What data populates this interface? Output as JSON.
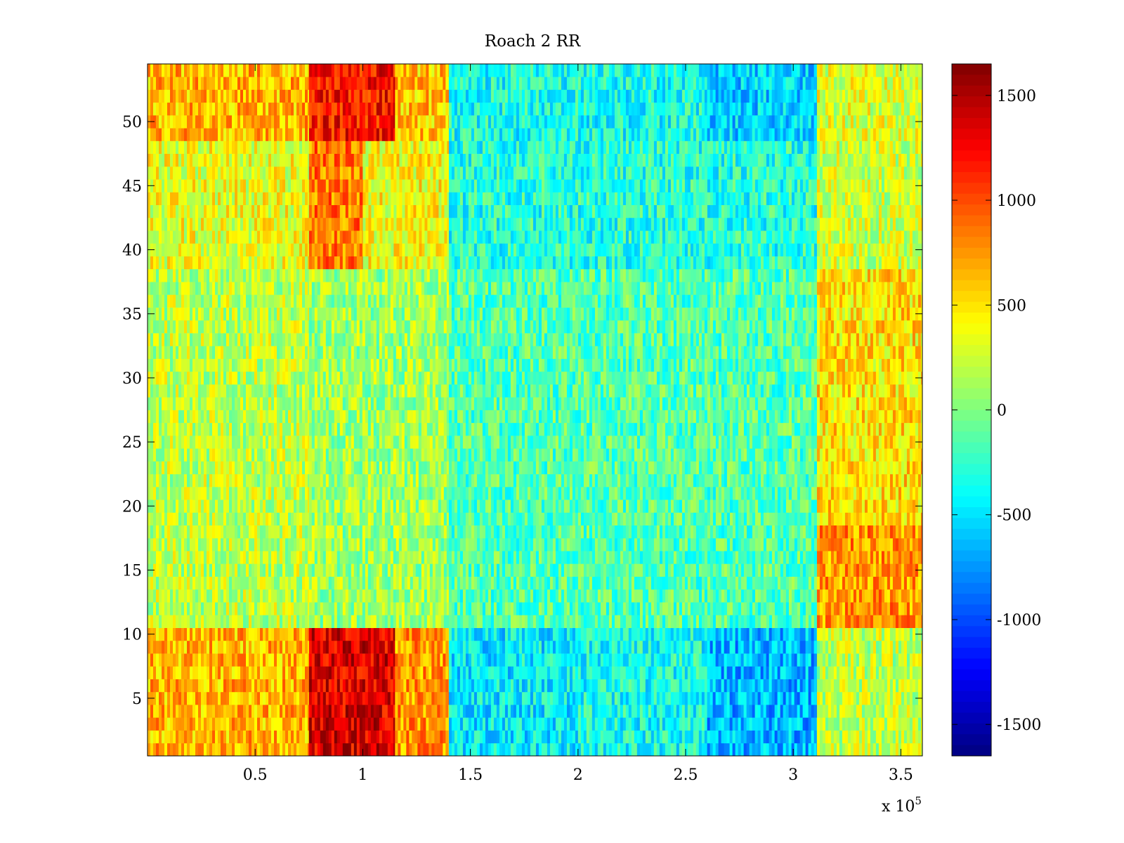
{
  "chart_data": {
    "type": "heatmap",
    "title": "Roach 2 RR",
    "xlabel": "",
    "ylabel": "",
    "x_exponent_label": "x 10",
    "x_exponent_power": "5",
    "xlim": [
      0,
      360000
    ],
    "ylim": [
      0.5,
      54.5
    ],
    "x_ticks": [
      {
        "value": 50000,
        "label": "0.5"
      },
      {
        "value": 100000,
        "label": "1"
      },
      {
        "value": 150000,
        "label": "1.5"
      },
      {
        "value": 200000,
        "label": "2"
      },
      {
        "value": 250000,
        "label": "2.5"
      },
      {
        "value": 300000,
        "label": "3"
      },
      {
        "value": 350000,
        "label": "3.5"
      }
    ],
    "y_ticks": [
      {
        "value": 5,
        "label": "5"
      },
      {
        "value": 10,
        "label": "10"
      },
      {
        "value": 15,
        "label": "15"
      },
      {
        "value": 20,
        "label": "20"
      },
      {
        "value": 25,
        "label": "25"
      },
      {
        "value": 30,
        "label": "30"
      },
      {
        "value": 35,
        "label": "35"
      },
      {
        "value": 40,
        "label": "40"
      },
      {
        "value": 45,
        "label": "45"
      },
      {
        "value": 50,
        "label": "50"
      }
    ],
    "colorbar": {
      "colormap": "jet",
      "range": [
        -1650,
        1650
      ],
      "ticks": [
        {
          "value": 1500,
          "label": "1500"
        },
        {
          "value": 1000,
          "label": "1000"
        },
        {
          "value": 500,
          "label": "500"
        },
        {
          "value": 0,
          "label": "0"
        },
        {
          "value": -500,
          "label": "-500"
        },
        {
          "value": -1000,
          "label": "-1000"
        },
        {
          "value": -1500,
          "label": "-1500"
        }
      ]
    },
    "rows": 54,
    "regions": [
      {
        "x_start": 0,
        "x_end": 75000,
        "y_start": 1,
        "y_end": 10,
        "level": 650
      },
      {
        "x_start": 75000,
        "x_end": 115000,
        "y_start": 1,
        "y_end": 10,
        "level": 1350
      },
      {
        "x_start": 115000,
        "x_end": 140000,
        "y_start": 1,
        "y_end": 10,
        "level": 750
      },
      {
        "x_start": 140000,
        "x_end": 200000,
        "y_start": 1,
        "y_end": 10,
        "level": -450
      },
      {
        "x_start": 200000,
        "x_end": 260000,
        "y_start": 1,
        "y_end": 10,
        "level": -350
      },
      {
        "x_start": 260000,
        "x_end": 311000,
        "y_start": 1,
        "y_end": 10,
        "level": -650
      },
      {
        "x_start": 311000,
        "x_end": 360000,
        "y_start": 1,
        "y_end": 10,
        "level": 200
      },
      {
        "x_start": 0,
        "x_end": 75000,
        "y_start": 11,
        "y_end": 38,
        "level": 200
      },
      {
        "x_start": 75000,
        "x_end": 140000,
        "y_start": 11,
        "y_end": 38,
        "level": 100
      },
      {
        "x_start": 140000,
        "x_end": 311000,
        "y_start": 11,
        "y_end": 38,
        "level": -150
      },
      {
        "x_start": 311000,
        "x_end": 360000,
        "y_start": 11,
        "y_end": 18,
        "level": 750
      },
      {
        "x_start": 311000,
        "x_end": 360000,
        "y_start": 19,
        "y_end": 38,
        "level": 500
      },
      {
        "x_start": 0,
        "x_end": 75000,
        "y_start": 39,
        "y_end": 48,
        "level": 350
      },
      {
        "x_start": 75000,
        "x_end": 100000,
        "y_start": 39,
        "y_end": 48,
        "level": 850
      },
      {
        "x_start": 100000,
        "x_end": 140000,
        "y_start": 39,
        "y_end": 48,
        "level": 400
      },
      {
        "x_start": 140000,
        "x_end": 311000,
        "y_start": 39,
        "y_end": 48,
        "level": -300
      },
      {
        "x_start": 311000,
        "x_end": 360000,
        "y_start": 39,
        "y_end": 48,
        "level": 250
      },
      {
        "x_start": 0,
        "x_end": 75000,
        "y_start": 49,
        "y_end": 54,
        "level": 650
      },
      {
        "x_start": 75000,
        "x_end": 115000,
        "y_start": 49,
        "y_end": 54,
        "level": 1200
      },
      {
        "x_start": 115000,
        "x_end": 140000,
        "y_start": 49,
        "y_end": 54,
        "level": 600
      },
      {
        "x_start": 140000,
        "x_end": 260000,
        "y_start": 49,
        "y_end": 54,
        "level": -350
      },
      {
        "x_start": 260000,
        "x_end": 311000,
        "y_start": 49,
        "y_end": 54,
        "level": -550
      },
      {
        "x_start": 311000,
        "x_end": 360000,
        "y_start": 49,
        "y_end": 54,
        "level": 300
      }
    ],
    "noise_amplitude": 320,
    "grid": false,
    "legend": "colorbar-right"
  }
}
